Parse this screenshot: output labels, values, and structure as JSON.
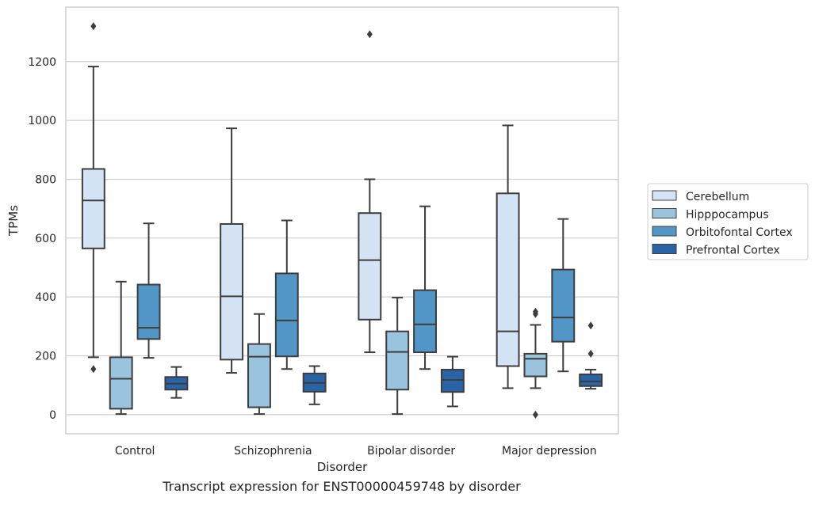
{
  "caption": "Transcript expression for ENST00000459748 by disorder",
  "chart_data": {
    "type": "box",
    "xlabel": "Disorder",
    "ylabel": "TPMs",
    "ylim": [
      -65,
      1385
    ],
    "yticks": [
      0,
      200,
      400,
      600,
      800,
      1000,
      1200
    ],
    "grid": "horizontal",
    "legend_position": "right",
    "categories": [
      "Control",
      "Schizophrenia",
      "Bipolar disorder",
      "Major depression"
    ],
    "series": [
      {
        "name": "Cerebellum",
        "color": "#d4e4f4",
        "boxes": [
          {
            "whisker_low": 195,
            "q1": 565,
            "median": 728,
            "q3": 835,
            "whisker_high": 1183,
            "outliers": [
              155,
              1320
            ]
          },
          {
            "whisker_low": 142,
            "q1": 187,
            "median": 402,
            "q3": 648,
            "whisker_high": 973,
            "outliers": []
          },
          {
            "whisker_low": 212,
            "q1": 323,
            "median": 525,
            "q3": 685,
            "whisker_high": 800,
            "outliers": [
              1293
            ]
          },
          {
            "whisker_low": 90,
            "q1": 165,
            "median": 283,
            "q3": 752,
            "whisker_high": 983,
            "outliers": []
          }
        ]
      },
      {
        "name": "Hipppocampus",
        "color": "#9ac3dd",
        "boxes": [
          {
            "whisker_low": 2,
            "q1": 20,
            "median": 122,
            "q3": 195,
            "whisker_high": 452,
            "outliers": []
          },
          {
            "whisker_low": 2,
            "q1": 25,
            "median": 197,
            "q3": 240,
            "whisker_high": 342,
            "outliers": []
          },
          {
            "whisker_low": 2,
            "q1": 85,
            "median": 213,
            "q3": 283,
            "whisker_high": 398,
            "outliers": []
          },
          {
            "whisker_low": 90,
            "q1": 130,
            "median": 190,
            "q3": 207,
            "whisker_high": 305,
            "outliers": [
              0,
              342,
              350
            ]
          }
        ]
      },
      {
        "name": "Orbitofontal Cortex",
        "color": "#5196c6",
        "boxes": [
          {
            "whisker_low": 193,
            "q1": 257,
            "median": 295,
            "q3": 442,
            "whisker_high": 650,
            "outliers": []
          },
          {
            "whisker_low": 155,
            "q1": 198,
            "median": 320,
            "q3": 480,
            "whisker_high": 660,
            "outliers": []
          },
          {
            "whisker_low": 155,
            "q1": 212,
            "median": 307,
            "q3": 423,
            "whisker_high": 708,
            "outliers": []
          },
          {
            "whisker_low": 147,
            "q1": 248,
            "median": 330,
            "q3": 493,
            "whisker_high": 665,
            "outliers": []
          }
        ]
      },
      {
        "name": "Prefrontal Cortex",
        "color": "#2a64a7",
        "boxes": [
          {
            "whisker_low": 57,
            "q1": 85,
            "median": 105,
            "q3": 128,
            "whisker_high": 162,
            "outliers": []
          },
          {
            "whisker_low": 35,
            "q1": 78,
            "median": 108,
            "q3": 140,
            "whisker_high": 165,
            "outliers": []
          },
          {
            "whisker_low": 28,
            "q1": 77,
            "median": 118,
            "q3": 153,
            "whisker_high": 197,
            "outliers": []
          },
          {
            "whisker_low": 88,
            "q1": 97,
            "median": 113,
            "q3": 137,
            "whisker_high": 153,
            "outliers": [
              207,
              303
            ]
          }
        ]
      }
    ]
  }
}
